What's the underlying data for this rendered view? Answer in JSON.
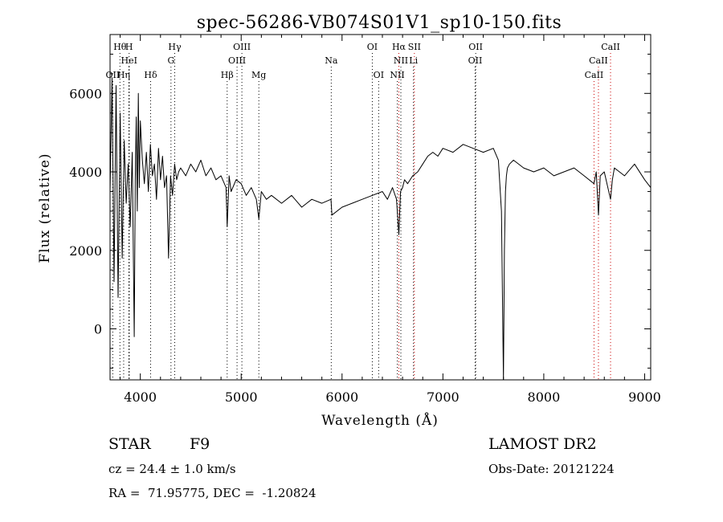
{
  "chart_data": {
    "type": "line",
    "title": "spec-56286-VB074S01V1_sp10-150.fits",
    "xlabel": "Wavelength (Å)",
    "ylabel": "Flux (relative)",
    "xlim": [
      3700,
      9060
    ],
    "ylim": [
      -1300,
      7500
    ],
    "xticks": [
      4000,
      5000,
      6000,
      7000,
      8000,
      9000
    ],
    "xticklabels": [
      "4000",
      "5000",
      "6000",
      "7000",
      "8000",
      "9000"
    ],
    "yticks": [
      0,
      2000,
      4000,
      6000
    ],
    "yticklabels": [
      "0",
      "2000",
      "4000",
      "6000"
    ],
    "grid": false,
    "line_color": "#000000",
    "marker_color_black": "#000000",
    "marker_color_red": "#cc0000",
    "series": [
      {
        "x": [
          3700,
          3720,
          3740,
          3760,
          3780,
          3800,
          3820,
          3840,
          3860,
          3880,
          3900,
          3920,
          3940,
          3950,
          3960,
          3970,
          3980,
          3990,
          4000,
          4020,
          4040,
          4060,
          4080,
          4100,
          4120,
          4140,
          4160,
          4180,
          4200,
          4220,
          4240,
          4260,
          4280,
          4300,
          4320,
          4340,
          4360,
          4380,
          4400,
          4450,
          4500,
          4550,
          4600,
          4650,
          4700,
          4750,
          4800,
          4850,
          4861,
          4880,
          4900,
          4950,
          5000,
          5050,
          5100,
          5150,
          5175,
          5200,
          5250,
          5300,
          5400,
          5500,
          5600,
          5700,
          5800,
          5890,
          5900,
          6000,
          6100,
          6200,
          6300,
          6400,
          6450,
          6500,
          6540,
          6563,
          6580,
          6600,
          6620,
          6650,
          6700,
          6750,
          6800,
          6850,
          6900,
          6950,
          7000,
          7100,
          7200,
          7300,
          7400,
          7500,
          7550,
          7580,
          7600,
          7610,
          7620,
          7630,
          7640,
          7660,
          7700,
          7800,
          7900,
          8000,
          8100,
          8200,
          8300,
          8400,
          8498,
          8520,
          8542,
          8560,
          8600,
          8662,
          8680,
          8700,
          8800,
          8900,
          9000,
          9060
        ],
        "y": [
          3500,
          6400,
          1200,
          6200,
          800,
          5500,
          1800,
          4800,
          3200,
          4200,
          2600,
          4500,
          -200,
          3800,
          5400,
          3000,
          6000,
          3600,
          5300,
          4300,
          3700,
          4500,
          3500,
          4700,
          3900,
          4200,
          3300,
          4600,
          3800,
          4400,
          3600,
          3900,
          1800,
          3900,
          3400,
          4200,
          3800,
          4000,
          4100,
          3900,
          4200,
          4000,
          4300,
          3900,
          4100,
          3800,
          3900,
          3600,
          2600,
          3900,
          3500,
          3800,
          3700,
          3400,
          3600,
          3300,
          2800,
          3500,
          3300,
          3400,
          3200,
          3400,
          3100,
          3300,
          3200,
          3300,
          2900,
          3100,
          3200,
          3300,
          3400,
          3500,
          3300,
          3600,
          3300,
          2400,
          3500,
          3600,
          3800,
          3700,
          3900,
          4000,
          4200,
          4400,
          4500,
          4400,
          4600,
          4500,
          4700,
          4600,
          4500,
          4600,
          4300,
          3000,
          -1300,
          2000,
          3500,
          3900,
          4100,
          4200,
          4300,
          4100,
          4000,
          4100,
          3900,
          4000,
          4100,
          3900,
          3700,
          4000,
          2900,
          3900,
          4000,
          3300,
          3800,
          4100,
          3900,
          4200,
          3800,
          3600
        ]
      }
    ],
    "lines": [
      {
        "label": "Hθ",
        "w": 3798,
        "row": 1,
        "color": "black"
      },
      {
        "label": "H",
        "w": 3889,
        "row": 1,
        "color": "black"
      },
      {
        "label": "Hγ",
        "w": 4341,
        "row": 1,
        "color": "black"
      },
      {
        "label": "OIII",
        "w": 5007,
        "row": 1,
        "color": "black"
      },
      {
        "label": "OI",
        "w": 6300,
        "row": 1,
        "color": "black"
      },
      {
        "label": "Hα",
        "w": 6563,
        "row": 1,
        "color": "red"
      },
      {
        "label": "SII",
        "w": 6717,
        "row": 1,
        "color": "red"
      },
      {
        "label": "OII",
        "w": 7325,
        "row": 1,
        "color": "black"
      },
      {
        "label": "CaII",
        "w": 8662,
        "row": 1,
        "color": "red"
      },
      {
        "label": "HeI",
        "w": 3889,
        "row": 2,
        "color": "black"
      },
      {
        "label": "G",
        "w": 4304,
        "row": 2,
        "color": "black"
      },
      {
        "label": "OIII",
        "w": 4959,
        "row": 2,
        "color": "black"
      },
      {
        "label": "Na",
        "w": 5893,
        "row": 2,
        "color": "black"
      },
      {
        "label": "NII",
        "w": 6583,
        "row": 2,
        "color": "black"
      },
      {
        "label": "Li",
        "w": 6708,
        "row": 2,
        "color": "black"
      },
      {
        "label": "OII",
        "w": 7320,
        "row": 2,
        "color": "black"
      },
      {
        "label": "CaII",
        "w": 8542,
        "row": 2,
        "color": "red"
      },
      {
        "label": "OII",
        "w": 3727,
        "row": 3,
        "color": "black"
      },
      {
        "label": "Hη",
        "w": 3835,
        "row": 3,
        "color": "black"
      },
      {
        "label": "Hδ",
        "w": 4102,
        "row": 3,
        "color": "black"
      },
      {
        "label": "Hβ",
        "w": 4861,
        "row": 3,
        "color": "black"
      },
      {
        "label": "Mg",
        "w": 5175,
        "row": 3,
        "color": "black"
      },
      {
        "label": "OI",
        "w": 6363,
        "row": 3,
        "color": "black"
      },
      {
        "label": "NII",
        "w": 6548,
        "row": 3,
        "color": "black"
      },
      {
        "label": "CaII",
        "w": 8498,
        "row": 3,
        "color": "red"
      }
    ]
  },
  "info": {
    "object_class": "STAR",
    "subclass": "F9",
    "survey": "LAMOST DR2",
    "cz": "cz = 24.4 ± 1.0 km/s",
    "obs_date": "Obs-Date: 20121224",
    "coords": "RA =  71.95775, DEC =  -1.20824"
  }
}
